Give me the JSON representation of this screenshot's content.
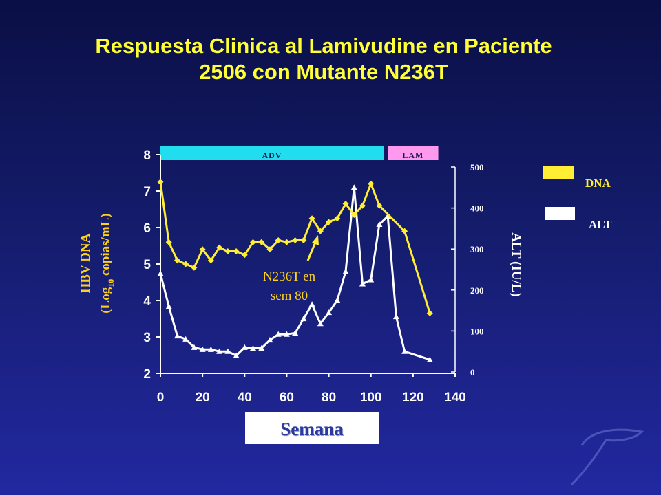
{
  "title_line1": "Respuesta Clinica al  Lamivudine en Paciente",
  "title_line2": "2506 con Mutante N236T",
  "colors": {
    "dna": "#ffee33",
    "alt": "#ffffff",
    "adv_band": "#22ddee",
    "lam_band": "#ff99ee",
    "ylabel_left": "#ffd21a"
  },
  "chart_data": {
    "type": "line",
    "xlabel": "Semana",
    "ylabel_left_line1": "HBV DNA",
    "ylabel_left_line2_pre": "(Log",
    "ylabel_left_line2_sub": "10",
    "ylabel_left_line2_post": " copias/mL)",
    "ylabel_right": "ALT (IU/L)",
    "xlim": [
      0,
      140
    ],
    "x_ticks": [
      "0",
      "20",
      "40",
      "60",
      "80",
      "100",
      "120",
      "140"
    ],
    "ylim_left": [
      2,
      8
    ],
    "y_ticks_left": [
      "2",
      "3",
      "4",
      "5",
      "6",
      "7",
      "8"
    ],
    "ylim_right": [
      0,
      500
    ],
    "y_ticks_right": [
      "0",
      "100",
      "200",
      "300",
      "400",
      "500"
    ],
    "treatment_bands": [
      {
        "label": "ADV",
        "start": 0,
        "end": 106
      },
      {
        "label": "LAM",
        "start": 108,
        "end": 132
      }
    ],
    "annotation": {
      "line1": "N236T en",
      "line2": "sem 80",
      "x": 74,
      "y": 5.7
    },
    "legend": [
      {
        "label": "DNA",
        "color": "#ffee33"
      },
      {
        "label": "ALT",
        "color": "#ffffff"
      }
    ],
    "series": [
      {
        "name": "DNA",
        "axis": "left",
        "x": [
          0,
          4,
          8,
          12,
          16,
          20,
          24,
          28,
          32,
          36,
          40,
          44,
          48,
          52,
          56,
          60,
          64,
          68,
          72,
          76,
          80,
          84,
          88,
          92,
          96,
          100,
          104,
          116,
          128
        ],
        "y": [
          7.25,
          5.6,
          5.1,
          5.0,
          4.9,
          5.4,
          5.1,
          5.45,
          5.35,
          5.35,
          5.25,
          5.6,
          5.6,
          5.4,
          5.65,
          5.6,
          5.65,
          5.65,
          6.25,
          5.9,
          6.15,
          6.25,
          6.65,
          6.35,
          6.6,
          7.2,
          6.6,
          5.9,
          3.65
        ]
      },
      {
        "name": "ALT",
        "axis": "right",
        "x": [
          0,
          4,
          8,
          12,
          16,
          20,
          24,
          28,
          32,
          36,
          40,
          44,
          48,
          52,
          56,
          60,
          64,
          68,
          72,
          76,
          80,
          84,
          88,
          92,
          96,
          100,
          104,
          108,
          112,
          116,
          128
        ],
        "y": [
          240,
          160,
          88,
          80,
          60,
          55,
          55,
          50,
          50,
          40,
          60,
          58,
          58,
          78,
          92,
          92,
          95,
          130,
          165,
          118,
          145,
          175,
          245,
          450,
          215,
          225,
          360,
          380,
          135,
          50,
          30
        ]
      }
    ]
  }
}
